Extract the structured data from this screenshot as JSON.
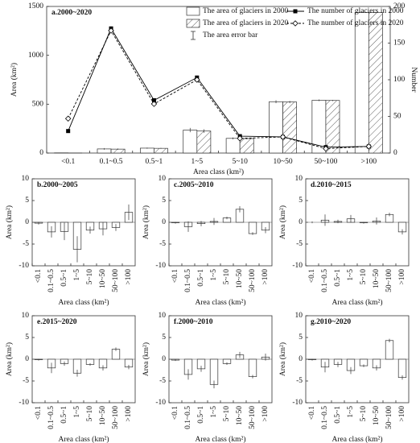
{
  "chart_data": [
    {
      "type": "combo",
      "title": "a.2000~2020",
      "x_label": "Area class (km²)",
      "y_label": "Area (km²)",
      "y2_label": "Number",
      "categories": [
        "<0.1",
        "0.1~0.5",
        "0.5~1",
        "1~5",
        "5~10",
        "10~50",
        "50~100",
        ">100"
      ],
      "ylim": [
        0,
        1500
      ],
      "yticks": [
        0,
        500,
        1000,
        1500
      ],
      "y2lim": [
        0,
        200
      ],
      "y2ticks": [
        0,
        50,
        100,
        150,
        200
      ],
      "error_label": "The area error bar",
      "series": [
        {
          "name": "The area of glaciers in 2000",
          "type": "bar",
          "color": "#ffffff",
          "values": [
            2,
            42,
            50,
            235,
            150,
            525,
            540,
            1440
          ],
          "errors": [
            2,
            8,
            6,
            22,
            10,
            15,
            8,
            6
          ]
        },
        {
          "name": "The area of glaciers in 2020",
          "type": "bar",
          "color": "#ffffff",
          "pattern": "diagonal",
          "values": [
            1,
            40,
            48,
            225,
            148,
            522,
            538,
            1438
          ],
          "errors": [
            1,
            6,
            5,
            18,
            8,
            12,
            6,
            5
          ]
        },
        {
          "name": "The number of glaciers in 2000",
          "type": "line",
          "axis": "y2",
          "color": "#000000",
          "marker": "square",
          "values": [
            30,
            170,
            72,
            103,
            23,
            22,
            8,
            9
          ]
        },
        {
          "name": "The number of glaciers in 2020",
          "type": "line",
          "axis": "y2",
          "color": "#000000",
          "marker": "diamond",
          "dashed": true,
          "values": [
            47,
            167,
            67,
            100,
            20,
            22,
            6,
            9
          ]
        }
      ]
    },
    {
      "type": "bar",
      "title": "b.2000~2005",
      "x_label": "Area class (km²)",
      "y_label": "Area (km²)",
      "color": "#ffffff",
      "categories": [
        "<0.1",
        "0.1~0.5",
        "0.5~1",
        "1~5",
        "5~10",
        "10~50",
        "50~100",
        ">100"
      ],
      "values": [
        -0.2,
        -2.2,
        -2.1,
        -6.2,
        -1.8,
        -1.5,
        -1.2,
        2.3
      ],
      "errors": [
        0.3,
        1.3,
        2,
        3,
        0.8,
        1.5,
        0.8,
        1.8
      ],
      "ylim": [
        -10,
        10
      ],
      "yticks": [
        -10,
        -5,
        0,
        5,
        10
      ]
    },
    {
      "type": "bar",
      "title": "c.2005~2010",
      "x_label": "Area class (km²)",
      "y_label": "Area (km²)",
      "color": "#ffffff",
      "categories": [
        "<0.1",
        "0.1~0.5",
        "0.5~1",
        "1~5",
        "5~10",
        "10~50",
        "50~100",
        ">100"
      ],
      "values": [
        -0.1,
        -1,
        -0.3,
        0.2,
        1,
        3,
        -2.6,
        -1.8
      ],
      "errors": [
        0.2,
        1.2,
        0.6,
        0.8,
        0.3,
        0.7,
        0.3,
        0.7
      ],
      "ylim": [
        -10,
        10
      ],
      "yticks": [
        -10,
        -5,
        0,
        5,
        10
      ]
    },
    {
      "type": "bar",
      "title": "d.2010~2015",
      "x_label": "Area class (km²)",
      "y_label": "Area (km²)",
      "color": "#ffffff",
      "categories": [
        "<0.1",
        "0.1~0.5",
        "0.5~1",
        "1~5",
        "5~10",
        "10~50",
        "50~100",
        ">100"
      ],
      "values": [
        0,
        0.5,
        0.2,
        0.8,
        -0.1,
        0.3,
        1.8,
        -2.2
      ],
      "errors": [
        0.2,
        1.3,
        0.4,
        0.9,
        0.2,
        0.8,
        0.4,
        0.6
      ],
      "ylim": [
        -10,
        10
      ],
      "yticks": [
        -10,
        -5,
        0,
        5,
        10
      ]
    },
    {
      "type": "bar",
      "title": "e.2015~2020",
      "x_label": "Area class (km²)",
      "y_label": "Area (km²)",
      "color": "#ffffff",
      "categories": [
        "<0.1",
        "0.1~0.5",
        "0.5~1",
        "1~5",
        "5~10",
        "10~50",
        "50~100",
        ">100"
      ],
      "values": [
        -0.1,
        -2,
        -1,
        -3.2,
        -1.2,
        -2,
        2.3,
        -1.8
      ],
      "errors": [
        0.2,
        1.2,
        0.5,
        0.8,
        0.3,
        0.6,
        0.4,
        0.5
      ],
      "ylim": [
        -10,
        10
      ],
      "yticks": [
        -10,
        -5,
        0,
        5,
        10
      ]
    },
    {
      "type": "bar",
      "title": "f.2000~2010",
      "x_label": "Area class (km²)",
      "y_label": "Area (km²)",
      "color": "#ffffff",
      "categories": [
        "<0.1",
        "0.1~0.5",
        "0.5~1",
        "1~5",
        "5~10",
        "10~50",
        "50~100",
        ">100"
      ],
      "values": [
        -0.2,
        -3.5,
        -2.2,
        -5.8,
        -1,
        1,
        -4,
        0.5
      ],
      "errors": [
        0.2,
        1.2,
        0.7,
        0.9,
        0.3,
        0.7,
        0.4,
        0.8
      ],
      "ylim": [
        -10,
        10
      ],
      "yticks": [
        -10,
        -5,
        0,
        5,
        10
      ]
    },
    {
      "type": "bar",
      "title": "g.2010~2020",
      "x_label": "Area class (km²)",
      "y_label": "Area (km²)",
      "color": "#ffffff",
      "categories": [
        "<0.1",
        "0.1~0.5",
        "0.5~1",
        "1~5",
        "5~10",
        "10~50",
        "50~100",
        ">100"
      ],
      "values": [
        -0.1,
        -1.8,
        -1.2,
        -2.6,
        -1.5,
        -2,
        4.3,
        -4.2
      ],
      "errors": [
        0.2,
        1.2,
        0.6,
        0.8,
        0.3,
        0.6,
        0.4,
        0.5
      ],
      "ylim": [
        -10,
        10
      ],
      "yticks": [
        -10,
        -5,
        0,
        5,
        10
      ]
    }
  ]
}
